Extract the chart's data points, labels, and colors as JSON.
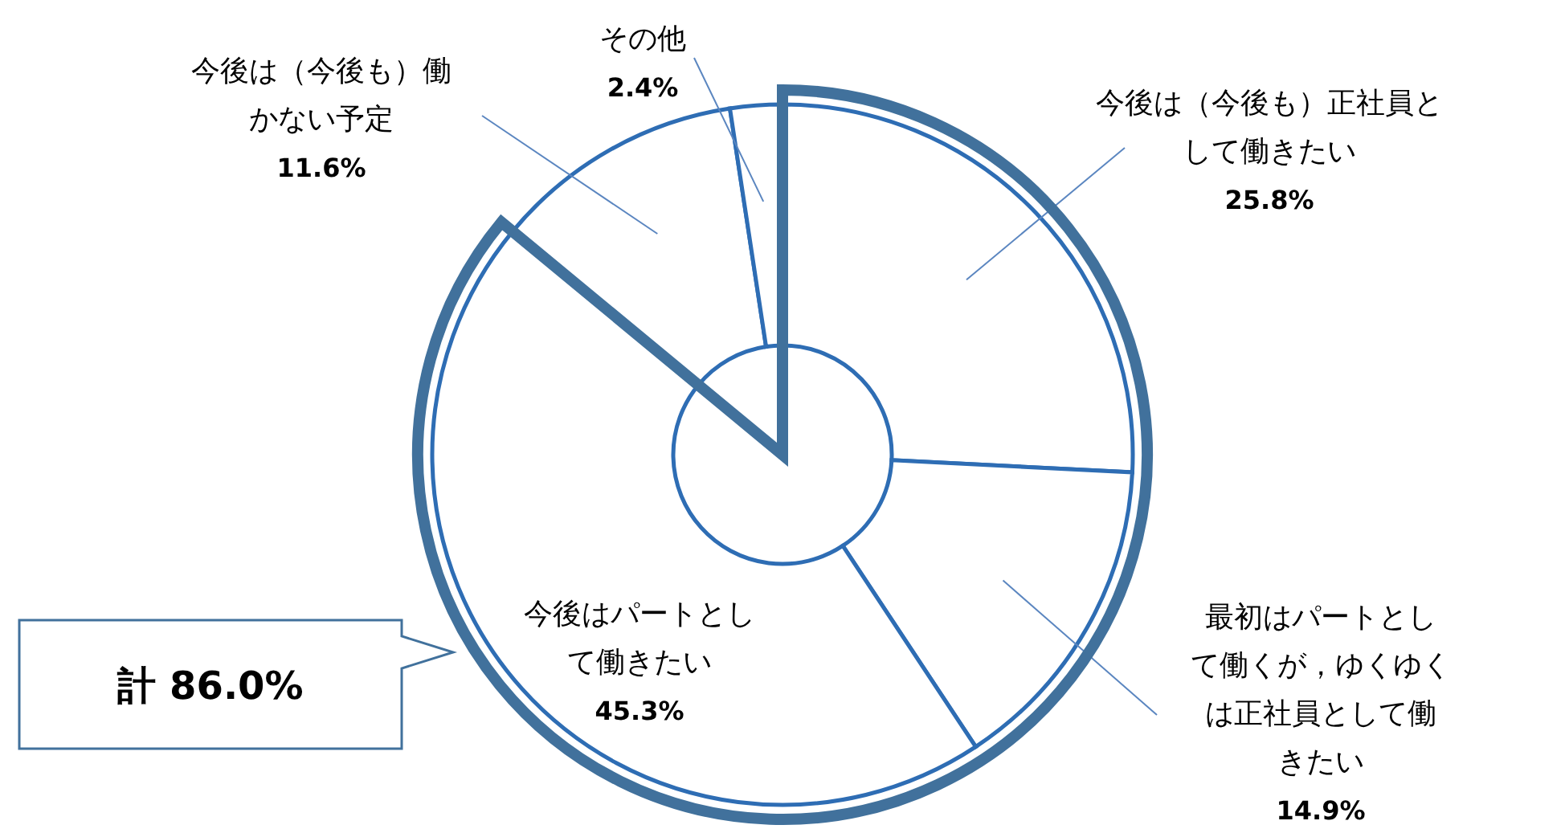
{
  "chart_data": {
    "type": "donut",
    "categories": [
      "今後は（今後も）正社員として働きたい",
      "最初はパートとして働くが，ゆくゆくは正社員として働きたい",
      "今後はパートとして働きたい",
      "今後は（今後も）働かない予定",
      "その他"
    ],
    "values": [
      25.8,
      14.9,
      45.3,
      11.6,
      2.4
    ],
    "value_labels": [
      "25.8%",
      "14.9%",
      "45.3%",
      "11.6%",
      "2.4%"
    ],
    "colors": [
      "#ffffff",
      "#ffffff",
      "#ffffff",
      "#ffffff",
      "#ffffff"
    ],
    "annotations": [
      "計 86.0%"
    ]
  }
}
